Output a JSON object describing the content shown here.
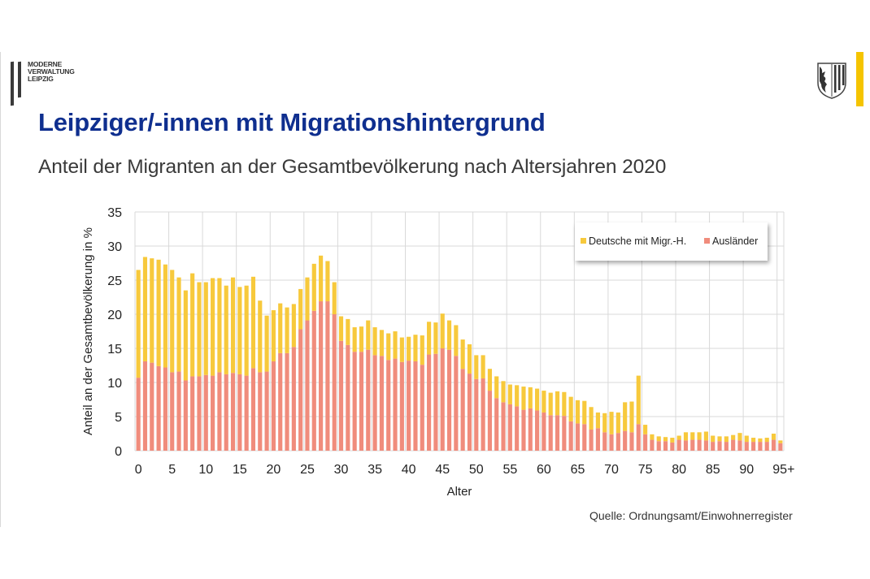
{
  "header": {
    "logo_text": [
      "MODERNE",
      "VERWALTUNG",
      "LEIPZIG"
    ],
    "logo_icon": "moderne-verwaltung-logo",
    "crest_icon": "leipzig-coat-of-arms-icon",
    "title": "Leipziger/-innen mit Migrationshintergrund",
    "subtitle": "Anteil der Migranten an der Gesamtbevölkerung nach Altersjahren 2020"
  },
  "footer": {
    "source": "Quelle: Ordnungsamt/Einwohnerregister"
  },
  "colors": {
    "title": "#0f2f8f",
    "deutsche": "#f7c93c",
    "auslaender": "#f08c7c",
    "accent_strip": "#f5c400",
    "grid": "#d9d9d9"
  },
  "chart_data": {
    "type": "bar",
    "stacked": true,
    "title": "Anteil der Migranten an der Gesamtbevölkerung nach Altersjahren 2020",
    "xlabel": "Alter",
    "ylabel": "Anteil an der Gesamtbevölkerung in %",
    "ylim": [
      0,
      35
    ],
    "yticks": [
      "0",
      "5",
      "10",
      "15",
      "20",
      "25",
      "30",
      "35"
    ],
    "xticks": [
      "0",
      "5",
      "10",
      "15",
      "20",
      "25",
      "30",
      "35",
      "40",
      "45",
      "50",
      "55",
      "60",
      "65",
      "70",
      "75",
      "80",
      "85",
      "90",
      "95+"
    ],
    "grid": true,
    "legend_position": "top-right",
    "categories": [
      "0",
      "1",
      "2",
      "3",
      "4",
      "5",
      "6",
      "7",
      "8",
      "9",
      "10",
      "11",
      "12",
      "13",
      "14",
      "15",
      "16",
      "17",
      "18",
      "19",
      "20",
      "21",
      "22",
      "23",
      "24",
      "25",
      "26",
      "27",
      "28",
      "29",
      "30",
      "31",
      "32",
      "33",
      "34",
      "35",
      "36",
      "37",
      "38",
      "39",
      "40",
      "41",
      "42",
      "43",
      "44",
      "45",
      "46",
      "47",
      "48",
      "49",
      "50",
      "51",
      "52",
      "53",
      "54",
      "55",
      "56",
      "57",
      "58",
      "59",
      "60",
      "61",
      "62",
      "63",
      "64",
      "65",
      "66",
      "67",
      "68",
      "69",
      "70",
      "71",
      "72",
      "73",
      "74",
      "75",
      "76",
      "77",
      "78",
      "79",
      "80",
      "81",
      "82",
      "83",
      "84",
      "85",
      "86",
      "87",
      "88",
      "89",
      "90",
      "91",
      "92",
      "93",
      "94",
      "95+"
    ],
    "series": [
      {
        "name": "Ausländer",
        "values": [
          10.7,
          13.1,
          12.9,
          12.4,
          12.2,
          11.5,
          11.6,
          10.3,
          10.9,
          10.9,
          11.1,
          11.0,
          11.5,
          11.2,
          11.4,
          11.2,
          11.0,
          12.1,
          11.5,
          11.6,
          13.1,
          14.3,
          14.3,
          15.2,
          17.8,
          19.1,
          20.5,
          21.9,
          21.9,
          20.0,
          16.1,
          15.5,
          14.5,
          14.5,
          14.8,
          14.0,
          13.9,
          13.3,
          13.5,
          13.0,
          13.2,
          13.1,
          12.6,
          14.1,
          14.2,
          15.0,
          14.8,
          13.9,
          12.0,
          11.3,
          10.5,
          10.6,
          8.8,
          7.7,
          7.1,
          6.8,
          6.5,
          6.0,
          6.2,
          5.9,
          5.6,
          5.2,
          5.2,
          5.1,
          4.3,
          4.0,
          3.9,
          3.1,
          3.3,
          2.7,
          2.4,
          2.6,
          2.9,
          2.7,
          3.9,
          2.4,
          1.6,
          1.4,
          1.4,
          1.2,
          1.6,
          1.5,
          1.6,
          1.6,
          1.5,
          1.3,
          1.4,
          1.3,
          1.6,
          1.5,
          1.3,
          1.3,
          1.3,
          1.3,
          1.6,
          1.1
        ],
        "color": "#f08c7c"
      },
      {
        "name": "Deutsche mit Migr.-H.",
        "values": [
          15.8,
          15.3,
          15.3,
          15.6,
          15.1,
          15.0,
          13.8,
          13.2,
          15.1,
          13.8,
          13.6,
          14.3,
          13.8,
          13.0,
          14.0,
          12.8,
          13.2,
          13.4,
          10.5,
          8.2,
          7.5,
          7.3,
          6.7,
          6.3,
          5.9,
          6.3,
          6.9,
          6.7,
          5.9,
          4.7,
          3.6,
          3.8,
          3.6,
          3.7,
          4.3,
          4.1,
          3.8,
          3.9,
          4.0,
          3.6,
          3.5,
          3.9,
          4.3,
          4.8,
          4.6,
          5.1,
          4.3,
          4.5,
          4.3,
          4.3,
          3.5,
          3.4,
          3.2,
          3.2,
          3.1,
          2.9,
          3.1,
          3.4,
          3.1,
          3.2,
          3.2,
          3.3,
          3.5,
          3.5,
          3.6,
          3.4,
          3.4,
          3.3,
          2.3,
          2.8,
          3.3,
          3.0,
          4.2,
          4.5,
          7.1,
          1.4,
          0.8,
          0.7,
          0.6,
          0.7,
          0.6,
          1.2,
          1.1,
          1.1,
          1.3,
          0.9,
          0.7,
          0.8,
          0.7,
          1.1,
          0.9,
          0.6,
          0.5,
          0.6,
          0.9,
          0.4
        ],
        "color": "#f7c93c"
      }
    ],
    "legend": [
      {
        "label": "Deutsche mit Migr.-H.",
        "color": "#f7c93c"
      },
      {
        "label": "Ausländer",
        "color": "#f08c7c"
      }
    ]
  }
}
